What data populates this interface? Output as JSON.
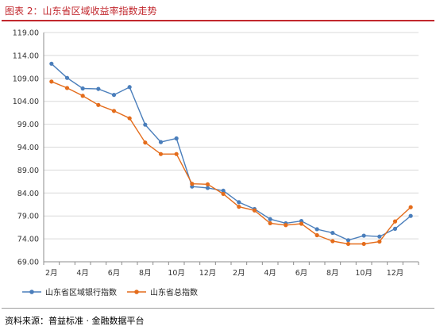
{
  "header": {
    "title": "图表 2：山东省区域收益率指数走势"
  },
  "footer": {
    "source": "资料来源：普益标准 · 金融数据平台"
  },
  "chart_data": {
    "type": "line",
    "title": "",
    "xlabel": "",
    "ylabel": "",
    "ylim": [
      69,
      119
    ],
    "yticks": [
      "119.00",
      "114.00",
      "109.00",
      "104.00",
      "99.00",
      "94.00",
      "89.00",
      "84.00",
      "79.00",
      "74.00",
      "69.00"
    ],
    "ytick_values": [
      119,
      114,
      109,
      104,
      99,
      94,
      89,
      84,
      79,
      74,
      69
    ],
    "categories": [
      "2月",
      "3月",
      "4月",
      "5月",
      "6月",
      "7月",
      "8月",
      "9月",
      "10月",
      "11月",
      "12月",
      "1月",
      "2月",
      "3月",
      "4月",
      "5月",
      "6月",
      "7月",
      "8月",
      "9月",
      "10月",
      "11月",
      "12月",
      "1月"
    ],
    "xtick_labels": [
      "2月",
      "",
      "4月",
      "",
      "6月",
      "",
      "8月",
      "",
      "10月",
      "",
      "12月",
      "",
      "2月",
      "",
      "4月",
      "",
      "6月",
      "",
      "8月",
      "",
      "10月",
      "",
      "12月",
      ""
    ],
    "series": [
      {
        "name": "山东省区域银行指数",
        "color": "#4a7ebb",
        "values": [
          112.2,
          109.1,
          106.8,
          106.7,
          105.4,
          107.1,
          98.9,
          95.1,
          95.9,
          85.4,
          85.1,
          84.5,
          82.0,
          80.5,
          78.3,
          77.4,
          77.9,
          76.1,
          75.3,
          73.7,
          74.7,
          74.5,
          76.2,
          79.0
        ]
      },
      {
        "name": "山东省总指数",
        "color": "#e46c1b",
        "values": [
          108.3,
          106.9,
          105.2,
          103.2,
          101.9,
          100.3,
          95.0,
          92.5,
          92.5,
          86.0,
          85.9,
          83.8,
          81.0,
          80.2,
          77.4,
          77.0,
          77.3,
          74.8,
          73.5,
          72.9,
          72.9,
          73.4,
          77.8,
          80.9
        ]
      }
    ],
    "grid": true,
    "legend": "bottom-left"
  }
}
